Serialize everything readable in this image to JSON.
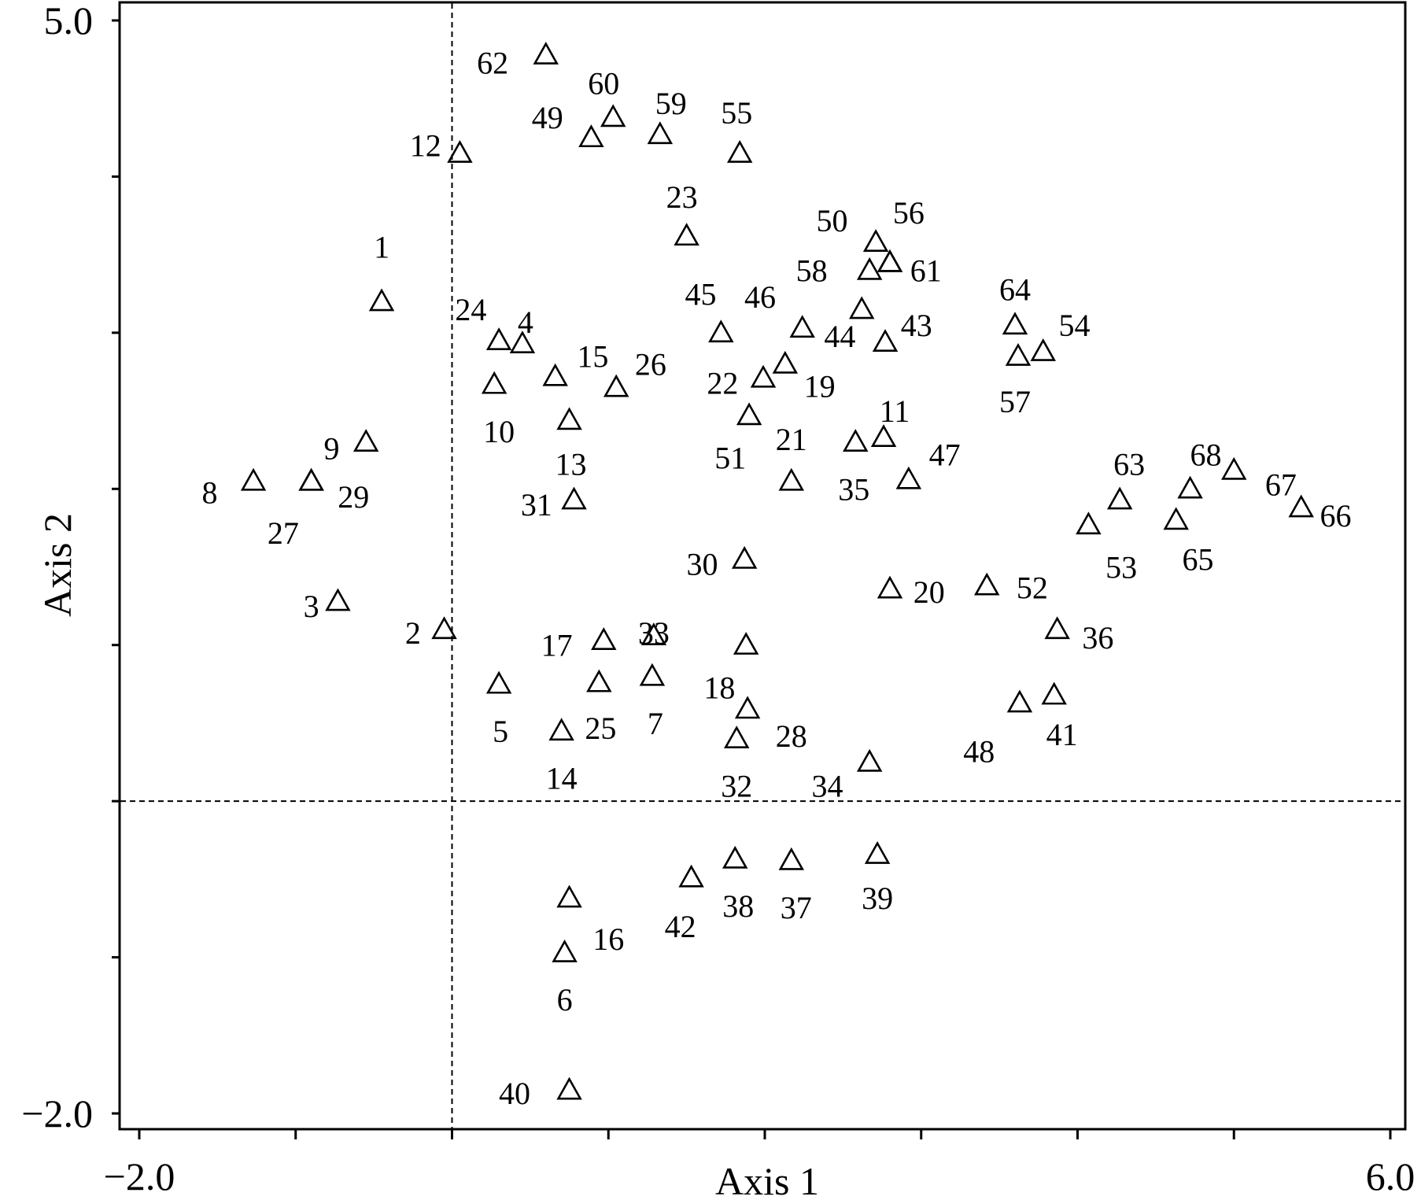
{
  "chart_data": {
    "type": "scatter",
    "title": "",
    "xlabel": "Axis 1",
    "ylabel": "Axis 2",
    "xlim": [
      -2.0,
      6.0
    ],
    "ylim": [
      -2.0,
      5.0
    ],
    "x_tick_labels": [
      {
        "value": -2.0,
        "label": "−2.0"
      },
      {
        "value": 6.0,
        "label": "6.0"
      }
    ],
    "y_tick_labels": [
      {
        "value": 5.0,
        "label": "5.0"
      },
      {
        "value": -2.0,
        "label": "−2.0"
      }
    ],
    "marker": "triangle-open",
    "reference_lines": {
      "x": 0,
      "y": 0,
      "style": "dashed"
    },
    "points": [
      {
        "label": "1",
        "x": -0.45,
        "y": 3.2,
        "lx": -0.45,
        "ly": 3.55
      },
      {
        "label": "2",
        "x": -0.05,
        "y": 1.1,
        "lx": -0.25,
        "ly": 1.08
      },
      {
        "label": "3",
        "x": -0.73,
        "y": 1.28,
        "lx": -0.9,
        "ly": 1.25
      },
      {
        "label": "4",
        "x": 0.45,
        "y": 2.93,
        "lx": 0.47,
        "ly": 3.07
      },
      {
        "label": "5",
        "x": 0.3,
        "y": 0.75,
        "lx": 0.31,
        "ly": 0.45
      },
      {
        "label": "6",
        "x": 0.72,
        "y": -0.97,
        "lx": 0.72,
        "ly": -1.27
      },
      {
        "label": "7",
        "x": 1.28,
        "y": 0.8,
        "lx": 1.3,
        "ly": 0.5
      },
      {
        "label": "8",
        "x": -1.27,
        "y": 2.05,
        "lx": -1.55,
        "ly": 1.98
      },
      {
        "label": "9",
        "x": -0.55,
        "y": 2.3,
        "lx": -0.77,
        "ly": 2.26
      },
      {
        "label": "10",
        "x": 0.27,
        "y": 2.67,
        "lx": 0.3,
        "ly": 2.37
      },
      {
        "label": "11",
        "x": 2.76,
        "y": 2.33,
        "lx": 2.83,
        "ly": 2.5
      },
      {
        "label": "12",
        "x": 0.05,
        "y": 4.15,
        "lx": -0.17,
        "ly": 4.2
      },
      {
        "label": "13",
        "x": 0.75,
        "y": 2.44,
        "lx": 0.76,
        "ly": 2.16
      },
      {
        "label": "14",
        "x": 0.7,
        "y": 0.45,
        "lx": 0.7,
        "ly": 0.15
      },
      {
        "label": "15",
        "x": 0.66,
        "y": 2.72,
        "lx": 0.9,
        "ly": 2.85
      },
      {
        "label": "16",
        "x": 0.75,
        "y": -0.62,
        "lx": 1.0,
        "ly": -0.88
      },
      {
        "label": "17",
        "x": 0.97,
        "y": 1.03,
        "lx": 0.67,
        "ly": 1.0
      },
      {
        "label": "18",
        "x": 1.88,
        "y": 1.0,
        "lx": 1.71,
        "ly": 0.73
      },
      {
        "label": "19",
        "x": 2.13,
        "y": 2.8,
        "lx": 2.35,
        "ly": 2.66
      },
      {
        "label": "20",
        "x": 2.8,
        "y": 1.36,
        "lx": 3.05,
        "ly": 1.34
      },
      {
        "label": "21",
        "x": 2.17,
        "y": 2.05,
        "lx": 2.17,
        "ly": 2.32
      },
      {
        "label": "22",
        "x": 1.99,
        "y": 2.71,
        "lx": 1.73,
        "ly": 2.68
      },
      {
        "label": "23",
        "x": 1.5,
        "y": 3.62,
        "lx": 1.47,
        "ly": 3.87
      },
      {
        "label": "24",
        "x": 0.3,
        "y": 2.95,
        "lx": 0.12,
        "ly": 3.15
      },
      {
        "label": "25",
        "x": 0.94,
        "y": 0.76,
        "lx": 0.95,
        "ly": 0.47
      },
      {
        "label": "26",
        "x": 1.05,
        "y": 2.65,
        "lx": 1.27,
        "ly": 2.8
      },
      {
        "label": "27",
        "x": -0.9,
        "y": 2.05,
        "lx": -1.08,
        "ly": 1.72
      },
      {
        "label": "28",
        "x": 1.89,
        "y": 0.59,
        "lx": 2.17,
        "ly": 0.42
      },
      {
        "label": "29",
        "x": -0.9,
        "y": 2.05,
        "lx": -0.63,
        "ly": 1.95
      },
      {
        "label": "30",
        "x": 1.87,
        "y": 1.55,
        "lx": 1.6,
        "ly": 1.52
      },
      {
        "label": "31",
        "x": 0.78,
        "y": 1.93,
        "lx": 0.54,
        "ly": 1.9
      },
      {
        "label": "32",
        "x": 1.82,
        "y": 0.4,
        "lx": 1.82,
        "ly": 0.1
      },
      {
        "label": "33",
        "x": 1.29,
        "y": 1.06,
        "lx": 1.29,
        "ly": 1.08
      },
      {
        "label": "34",
        "x": 2.67,
        "y": 0.25,
        "lx": 2.4,
        "ly": 0.1
      },
      {
        "label": "35",
        "x": 2.58,
        "y": 2.3,
        "lx": 2.57,
        "ly": 2.0
      },
      {
        "label": "36",
        "x": 3.87,
        "y": 1.1,
        "lx": 4.13,
        "ly": 1.05
      },
      {
        "label": "37",
        "x": 2.17,
        "y": -0.38,
        "lx": 2.2,
        "ly": -0.68
      },
      {
        "label": "38",
        "x": 1.81,
        "y": -0.37,
        "lx": 1.83,
        "ly": -0.67
      },
      {
        "label": "39",
        "x": 2.72,
        "y": -0.34,
        "lx": 2.72,
        "ly": -0.62
      },
      {
        "label": "40",
        "x": 0.75,
        "y": -1.85,
        "lx": 0.4,
        "ly": -1.87
      },
      {
        "label": "41",
        "x": 3.85,
        "y": 0.68,
        "lx": 3.9,
        "ly": 0.43
      },
      {
        "label": "42",
        "x": 1.53,
        "y": -0.49,
        "lx": 1.46,
        "ly": -0.8
      },
      {
        "label": "43",
        "x": 2.77,
        "y": 2.94,
        "lx": 2.97,
        "ly": 3.05
      },
      {
        "label": "44",
        "x": 2.62,
        "y": 3.15,
        "lx": 2.48,
        "ly": 2.98
      },
      {
        "label": "45",
        "x": 1.72,
        "y": 3.0,
        "lx": 1.59,
        "ly": 3.25
      },
      {
        "label": "46",
        "x": 2.24,
        "y": 3.03,
        "lx": 1.97,
        "ly": 3.23
      },
      {
        "label": "47",
        "x": 2.92,
        "y": 2.06,
        "lx": 3.15,
        "ly": 2.22
      },
      {
        "label": "48",
        "x": 3.63,
        "y": 0.63,
        "lx": 3.37,
        "ly": 0.32
      },
      {
        "label": "49",
        "x": 0.89,
        "y": 4.25,
        "lx": 0.61,
        "ly": 4.38
      },
      {
        "label": "50",
        "x": 2.71,
        "y": 3.58,
        "lx": 2.43,
        "ly": 3.72
      },
      {
        "label": "51",
        "x": 1.9,
        "y": 2.47,
        "lx": 1.78,
        "ly": 2.2
      },
      {
        "label": "52",
        "x": 3.42,
        "y": 1.38,
        "lx": 3.71,
        "ly": 1.37
      },
      {
        "label": "53",
        "x": 4.07,
        "y": 1.77,
        "lx": 4.28,
        "ly": 1.5
      },
      {
        "label": "54",
        "x": 3.78,
        "y": 2.88,
        "lx": 3.98,
        "ly": 3.05
      },
      {
        "label": "55",
        "x": 1.84,
        "y": 4.15,
        "lx": 1.82,
        "ly": 4.41
      },
      {
        "label": "56",
        "x": 2.8,
        "y": 3.45,
        "lx": 2.92,
        "ly": 3.77
      },
      {
        "label": "57",
        "x": 3.62,
        "y": 2.85,
        "lx": 3.6,
        "ly": 2.56
      },
      {
        "label": "58",
        "x": 2.67,
        "y": 3.4,
        "lx": 2.3,
        "ly": 3.4
      },
      {
        "label": "59",
        "x": 1.33,
        "y": 4.27,
        "lx": 1.4,
        "ly": 4.47
      },
      {
        "label": "60",
        "x": 1.03,
        "y": 4.38,
        "lx": 0.97,
        "ly": 4.6
      },
      {
        "label": "61",
        "x": 2.8,
        "y": 3.45,
        "lx": 3.03,
        "ly": 3.4
      },
      {
        "label": "62",
        "x": 0.6,
        "y": 4.78,
        "lx": 0.26,
        "ly": 4.73
      },
      {
        "label": "63",
        "x": 4.27,
        "y": 1.93,
        "lx": 4.33,
        "ly": 2.16
      },
      {
        "label": "64",
        "x": 3.6,
        "y": 3.05,
        "lx": 3.6,
        "ly": 3.28
      },
      {
        "label": "65",
        "x": 4.63,
        "y": 1.8,
        "lx": 4.77,
        "ly": 1.55
      },
      {
        "label": "66",
        "x": 5.43,
        "y": 1.88,
        "lx": 5.65,
        "ly": 1.83
      },
      {
        "label": "67",
        "x": 5.0,
        "y": 2.12,
        "lx": 5.3,
        "ly": 2.03
      },
      {
        "label": "68",
        "x": 4.72,
        "y": 2.0,
        "lx": 4.82,
        "ly": 2.22
      }
    ]
  }
}
